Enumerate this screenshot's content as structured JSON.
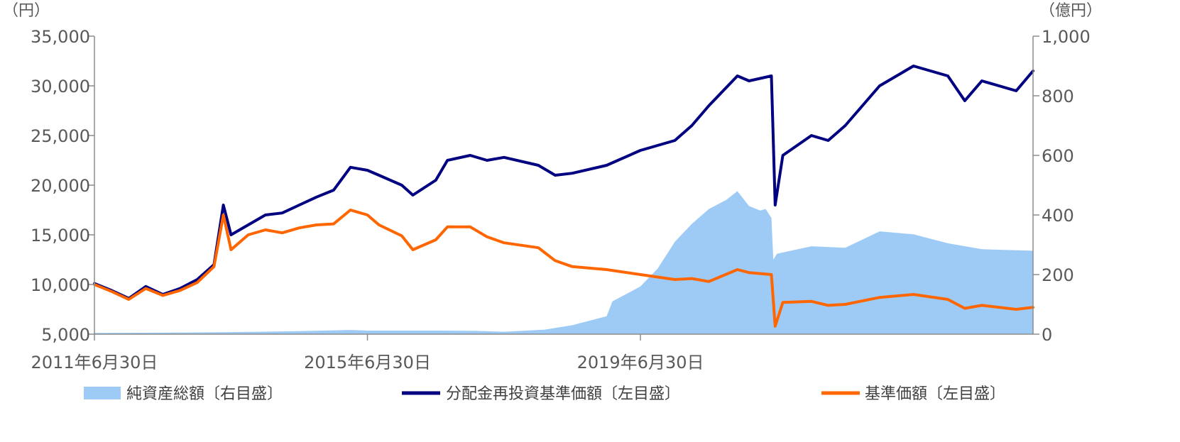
{
  "chart_data": {
    "type": "line",
    "left_unit": "（円）",
    "right_unit": "（億円）",
    "ylim_left": [
      5000,
      35000
    ],
    "ylim_right": [
      0,
      1000
    ],
    "y_left_ticks": [
      "35,000",
      "30,000",
      "25,000",
      "20,000",
      "15,000",
      "10,000",
      "5,000"
    ],
    "y_right_ticks": [
      "1,000",
      "800",
      "600",
      "400",
      "200",
      "0"
    ],
    "x_range": [
      "2011-06-30",
      "2025-03-31"
    ],
    "x_ticks": [
      {
        "date": "2011-06-30",
        "label": "2011年6月30日"
      },
      {
        "date": "2015-06-30",
        "label": "2015年6月30日"
      },
      {
        "date": "2019-06-30",
        "label": "2019年6月30日"
      }
    ],
    "grid": false,
    "legend_position": "bottom",
    "series": [
      {
        "name": "純資産総額〔右目盛〕",
        "type": "area",
        "axis": "right",
        "color": "#9DCBF6",
        "points": [
          [
            "2011-06-30",
            4
          ],
          [
            "2012-06-30",
            5
          ],
          [
            "2013-06-30",
            7
          ],
          [
            "2014-06-30",
            10
          ],
          [
            "2015-03-31",
            14
          ],
          [
            "2015-06-30",
            12
          ],
          [
            "2016-06-30",
            12
          ],
          [
            "2017-01-31",
            11
          ],
          [
            "2017-06-30",
            8
          ],
          [
            "2018-01-31",
            15
          ],
          [
            "2018-06-30",
            30
          ],
          [
            "2018-12-31",
            60
          ],
          [
            "2019-01-31",
            110
          ],
          [
            "2019-06-30",
            160
          ],
          [
            "2019-09-30",
            220
          ],
          [
            "2019-12-31",
            310
          ],
          [
            "2020-03-31",
            370
          ],
          [
            "2020-06-30",
            420
          ],
          [
            "2020-09-30",
            450
          ],
          [
            "2020-11-30",
            480
          ],
          [
            "2021-01-31",
            430
          ],
          [
            "2021-03-31",
            415
          ],
          [
            "2021-04-30",
            420
          ],
          [
            "2021-05-31",
            390
          ],
          [
            "2021-06-10",
            250
          ],
          [
            "2021-06-30",
            270
          ],
          [
            "2021-12-31",
            295
          ],
          [
            "2022-06-30",
            290
          ],
          [
            "2022-12-31",
            345
          ],
          [
            "2023-06-30",
            335
          ],
          [
            "2023-12-31",
            305
          ],
          [
            "2024-06-30",
            285
          ],
          [
            "2025-03-31",
            280
          ]
        ]
      },
      {
        "name": "分配金再投資基準価額〔左目盛〕",
        "type": "line",
        "axis": "left",
        "color": "#000080",
        "points": [
          [
            "2011-06-30",
            10100
          ],
          [
            "2011-09-30",
            9400
          ],
          [
            "2011-12-31",
            8600
          ],
          [
            "2012-03-31",
            9800
          ],
          [
            "2012-06-30",
            9000
          ],
          [
            "2012-09-30",
            9600
          ],
          [
            "2012-12-31",
            10500
          ],
          [
            "2013-03-31",
            12000
          ],
          [
            "2013-05-20",
            18000
          ],
          [
            "2013-06-30",
            15000
          ],
          [
            "2013-09-30",
            16000
          ],
          [
            "2013-12-31",
            17000
          ],
          [
            "2014-03-31",
            17200
          ],
          [
            "2014-06-30",
            18000
          ],
          [
            "2014-09-30",
            18800
          ],
          [
            "2014-12-31",
            19500
          ],
          [
            "2015-03-31",
            21800
          ],
          [
            "2015-06-30",
            21500
          ],
          [
            "2015-08-31",
            21000
          ],
          [
            "2015-12-31",
            20000
          ],
          [
            "2016-02-28",
            19000
          ],
          [
            "2016-06-30",
            20500
          ],
          [
            "2016-08-31",
            22500
          ],
          [
            "2016-12-31",
            23000
          ],
          [
            "2017-03-31",
            22500
          ],
          [
            "2017-06-30",
            22800
          ],
          [
            "2017-12-31",
            22000
          ],
          [
            "2018-03-31",
            21000
          ],
          [
            "2018-06-30",
            21200
          ],
          [
            "2018-12-31",
            22000
          ],
          [
            "2019-06-30",
            23500
          ],
          [
            "2019-12-31",
            24500
          ],
          [
            "2020-03-31",
            26000
          ],
          [
            "2020-06-30",
            28000
          ],
          [
            "2020-11-30",
            31000
          ],
          [
            "2021-01-31",
            30500
          ],
          [
            "2021-05-31",
            31000
          ],
          [
            "2021-06-20",
            18000
          ],
          [
            "2021-07-31",
            23000
          ],
          [
            "2021-12-31",
            25000
          ],
          [
            "2022-03-31",
            24500
          ],
          [
            "2022-06-30",
            26000
          ],
          [
            "2022-12-31",
            30000
          ],
          [
            "2023-06-30",
            32000
          ],
          [
            "2023-12-31",
            31000
          ],
          [
            "2024-03-31",
            28500
          ],
          [
            "2024-06-30",
            30500
          ],
          [
            "2024-12-31",
            29500
          ],
          [
            "2025-03-31",
            31500
          ]
        ]
      },
      {
        "name": "基準価額〔左目盛〕",
        "type": "line",
        "axis": "left",
        "color": "#FF6600",
        "points": [
          [
            "2011-06-30",
            10000
          ],
          [
            "2011-09-30",
            9300
          ],
          [
            "2011-12-31",
            8500
          ],
          [
            "2012-03-31",
            9600
          ],
          [
            "2012-06-30",
            8900
          ],
          [
            "2012-09-30",
            9400
          ],
          [
            "2012-12-31",
            10200
          ],
          [
            "2013-03-31",
            11800
          ],
          [
            "2013-05-20",
            17000
          ],
          [
            "2013-06-30",
            13500
          ],
          [
            "2013-09-30",
            15000
          ],
          [
            "2013-12-31",
            15500
          ],
          [
            "2014-03-31",
            15200
          ],
          [
            "2014-06-30",
            15700
          ],
          [
            "2014-09-30",
            16000
          ],
          [
            "2014-12-31",
            16100
          ],
          [
            "2015-03-31",
            17500
          ],
          [
            "2015-06-30",
            17000
          ],
          [
            "2015-08-31",
            16000
          ],
          [
            "2015-12-31",
            14900
          ],
          [
            "2016-02-28",
            13500
          ],
          [
            "2016-06-30",
            14500
          ],
          [
            "2016-08-31",
            15800
          ],
          [
            "2016-12-31",
            15800
          ],
          [
            "2017-03-31",
            14800
          ],
          [
            "2017-06-30",
            14200
          ],
          [
            "2017-12-31",
            13700
          ],
          [
            "2018-03-31",
            12400
          ],
          [
            "2018-06-30",
            11800
          ],
          [
            "2018-12-31",
            11500
          ],
          [
            "2019-06-30",
            11000
          ],
          [
            "2019-12-31",
            10500
          ],
          [
            "2020-03-31",
            10600
          ],
          [
            "2020-06-30",
            10300
          ],
          [
            "2020-11-30",
            11500
          ],
          [
            "2021-01-31",
            11200
          ],
          [
            "2021-05-31",
            11000
          ],
          [
            "2021-06-20",
            5800
          ],
          [
            "2021-07-31",
            8200
          ],
          [
            "2021-12-31",
            8300
          ],
          [
            "2022-03-31",
            7900
          ],
          [
            "2022-06-30",
            8000
          ],
          [
            "2022-12-31",
            8700
          ],
          [
            "2023-06-30",
            9000
          ],
          [
            "2023-12-31",
            8500
          ],
          [
            "2024-03-31",
            7600
          ],
          [
            "2024-06-30",
            7900
          ],
          [
            "2024-12-31",
            7500
          ],
          [
            "2025-03-31",
            7700
          ]
        ]
      }
    ]
  }
}
